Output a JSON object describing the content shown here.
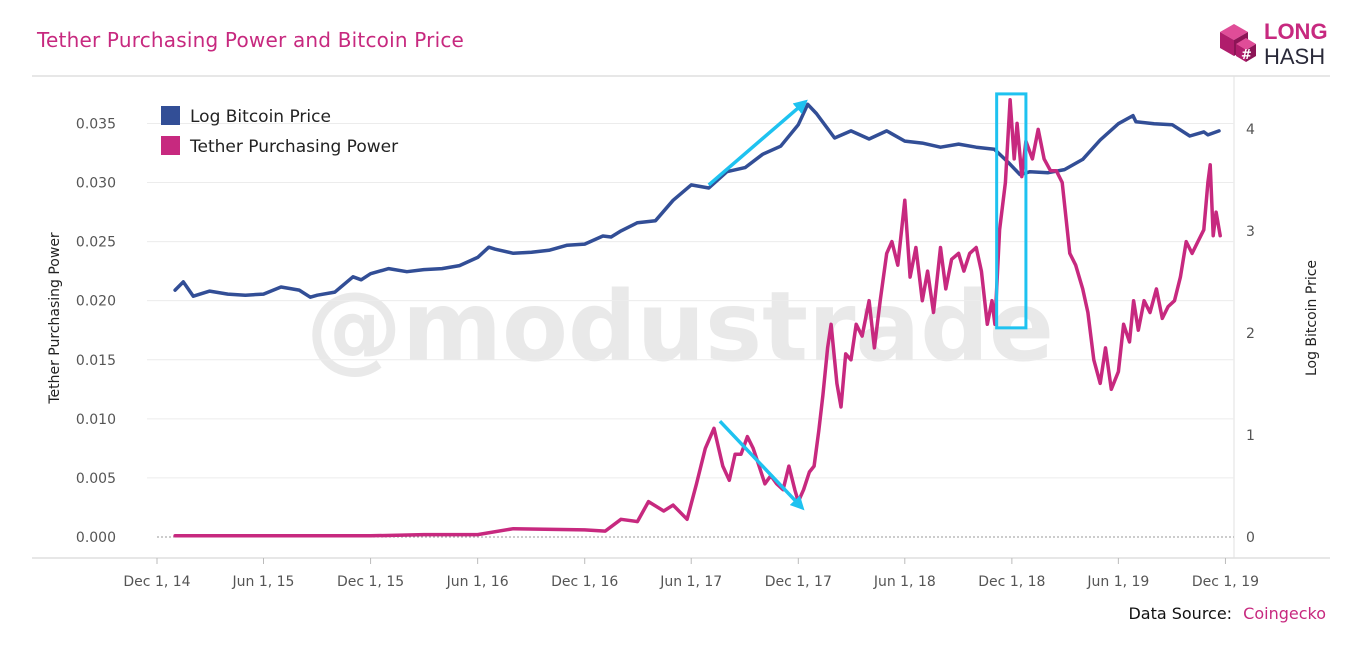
{
  "title": "Tether Purchasing Power and Bitcoin Price",
  "logo": {
    "line1": "LONG",
    "line2": "HASH"
  },
  "watermark": "@modustrade",
  "footer": {
    "label": "Data Source:",
    "source": "Coingecko"
  },
  "colors": {
    "bitcoin": "#324e96",
    "tether": "#c7297f",
    "annotation": "#1ec2f0",
    "title": "#c7297f"
  },
  "chart_data": {
    "type": "line",
    "title": "Tether Purchasing Power and Bitcoin Price",
    "x_ticks": [
      "Dec 1, 14",
      "Jun 1, 15",
      "Dec 1, 15",
      "Jun 1, 16",
      "Dec 1, 16",
      "Jun 1, 17",
      "Dec 1, 17",
      "Jun 1, 18",
      "Dec 1, 18",
      "Jun 1, 19",
      "Dec 1, 19"
    ],
    "x_tick_dates": [
      "2014-12-01",
      "2015-06-01",
      "2015-12-01",
      "2016-06-01",
      "2016-12-01",
      "2017-06-01",
      "2017-12-01",
      "2018-06-01",
      "2018-12-01",
      "2019-06-01",
      "2019-12-01"
    ],
    "x_range": [
      "2014-12-01",
      "2019-12-31"
    ],
    "y_left": {
      "label": "Tether Purchasing Power",
      "range": [
        0,
        0.038
      ],
      "ticks": [
        "0.000",
        "0.005",
        "0.010",
        "0.015",
        "0.020",
        "0.025",
        "0.030",
        "0.035"
      ]
    },
    "y_right": {
      "label": "Log Bitcoin Price",
      "range": [
        0,
        4.4
      ],
      "ticks": [
        "0",
        "1",
        "2",
        "3",
        "4"
      ]
    },
    "legend": {
      "position": "top-left",
      "entries": [
        "Log Bitcoin Price",
        "Tether Purchasing Power"
      ]
    },
    "grid": true,
    "series": [
      {
        "name": "Log Bitcoin Price",
        "axis": "right",
        "x": [
          "2015-01-01",
          "2015-01-15",
          "2015-02-01",
          "2015-03-01",
          "2015-04-01",
          "2015-05-01",
          "2015-06-01",
          "2015-07-01",
          "2015-08-01",
          "2015-08-20",
          "2015-09-01",
          "2015-10-01",
          "2015-11-01",
          "2015-11-15",
          "2015-12-01",
          "2016-01-01",
          "2016-02-01",
          "2016-03-01",
          "2016-04-01",
          "2016-05-01",
          "2016-06-01",
          "2016-06-20",
          "2016-07-01",
          "2016-08-01",
          "2016-09-01",
          "2016-10-01",
          "2016-11-01",
          "2016-12-01",
          "2017-01-01",
          "2017-01-15",
          "2017-02-01",
          "2017-03-01",
          "2017-04-01",
          "2017-05-01",
          "2017-06-01",
          "2017-07-01",
          "2017-08-01",
          "2017-09-01",
          "2017-10-01",
          "2017-11-01",
          "2017-12-01",
          "2017-12-17",
          "2018-01-01",
          "2018-02-01",
          "2018-03-01",
          "2018-04-01",
          "2018-05-01",
          "2018-06-01",
          "2018-07-01",
          "2018-08-01",
          "2018-09-01",
          "2018-10-01",
          "2018-11-01",
          "2018-11-25",
          "2018-12-15",
          "2019-01-01",
          "2019-02-01",
          "2019-03-01",
          "2019-04-01",
          "2019-05-01",
          "2019-06-01",
          "2019-06-26",
          "2019-07-01",
          "2019-08-01",
          "2019-09-01",
          "2019-10-01",
          "2019-10-25",
          "2019-11-01",
          "2019-11-20"
        ],
        "values": [
          2.42,
          2.5,
          2.36,
          2.41,
          2.38,
          2.37,
          2.38,
          2.45,
          2.42,
          2.35,
          2.37,
          2.4,
          2.55,
          2.52,
          2.58,
          2.63,
          2.6,
          2.62,
          2.63,
          2.66,
          2.74,
          2.84,
          2.82,
          2.78,
          2.79,
          2.81,
          2.86,
          2.87,
          2.95,
          2.94,
          3.0,
          3.08,
          3.1,
          3.3,
          3.45,
          3.42,
          3.58,
          3.62,
          3.75,
          3.83,
          4.04,
          4.24,
          4.15,
          3.91,
          3.98,
          3.9,
          3.98,
          3.88,
          3.86,
          3.82,
          3.85,
          3.82,
          3.8,
          3.67,
          3.55,
          3.58,
          3.57,
          3.6,
          3.7,
          3.89,
          4.05,
          4.13,
          4.07,
          4.05,
          4.04,
          3.93,
          3.97,
          3.94,
          3.98
        ]
      },
      {
        "name": "Tether Purchasing Power",
        "axis": "left",
        "x": [
          "2015-01-01",
          "2015-06-01",
          "2015-12-01",
          "2016-03-01",
          "2016-06-01",
          "2016-08-01",
          "2016-12-01",
          "2017-01-05",
          "2017-02-01",
          "2017-03-01",
          "2017-03-20",
          "2017-04-15",
          "2017-05-01",
          "2017-05-25",
          "2017-06-10",
          "2017-06-25",
          "2017-07-10",
          "2017-07-25",
          "2017-08-05",
          "2017-08-15",
          "2017-08-25",
          "2017-09-05",
          "2017-09-15",
          "2017-09-25",
          "2017-10-05",
          "2017-10-15",
          "2017-10-25",
          "2017-11-05",
          "2017-11-15",
          "2017-11-25",
          "2017-12-01",
          "2017-12-10",
          "2017-12-20",
          "2017-12-28",
          "2018-01-05",
          "2018-01-12",
          "2018-01-20",
          "2018-01-26",
          "2018-02-05",
          "2018-02-12",
          "2018-02-20",
          "2018-03-01",
          "2018-03-10",
          "2018-03-20",
          "2018-04-01",
          "2018-04-10",
          "2018-04-20",
          "2018-05-01",
          "2018-05-10",
          "2018-05-20",
          "2018-06-01",
          "2018-06-10",
          "2018-06-20",
          "2018-07-01",
          "2018-07-10",
          "2018-07-20",
          "2018-08-01",
          "2018-08-10",
          "2018-08-20",
          "2018-09-01",
          "2018-09-10",
          "2018-09-20",
          "2018-10-01",
          "2018-10-10",
          "2018-10-20",
          "2018-10-28",
          "2018-11-02",
          "2018-11-10",
          "2018-11-20",
          "2018-11-28",
          "2018-12-05",
          "2018-12-10",
          "2018-12-18",
          "2018-12-25",
          "2019-01-05",
          "2019-01-15",
          "2019-01-25",
          "2019-02-05",
          "2019-02-15",
          "2019-02-25",
          "2019-03-10",
          "2019-03-20",
          "2019-04-01",
          "2019-04-10",
          "2019-04-20",
          "2019-05-01",
          "2019-05-10",
          "2019-05-20",
          "2019-06-01",
          "2019-06-10",
          "2019-06-20",
          "2019-06-27",
          "2019-07-05",
          "2019-07-15",
          "2019-07-25",
          "2019-08-05",
          "2019-08-15",
          "2019-08-25",
          "2019-09-05",
          "2019-09-15",
          "2019-09-25",
          "2019-10-05",
          "2019-10-15",
          "2019-10-25",
          "2019-11-01",
          "2019-11-05",
          "2019-11-10",
          "2019-11-15",
          "2019-11-22"
        ],
        "values": [
          0.0001,
          0.0001,
          0.0001,
          0.0002,
          0.0002,
          0.0007,
          0.0006,
          0.0005,
          0.0015,
          0.0013,
          0.003,
          0.0022,
          0.0027,
          0.0015,
          0.0045,
          0.0075,
          0.0092,
          0.006,
          0.0048,
          0.007,
          0.007,
          0.0085,
          0.0075,
          0.006,
          0.0045,
          0.0052,
          0.0045,
          0.004,
          0.006,
          0.004,
          0.003,
          0.004,
          0.0055,
          0.006,
          0.009,
          0.012,
          0.016,
          0.018,
          0.013,
          0.011,
          0.0155,
          0.015,
          0.018,
          0.017,
          0.02,
          0.016,
          0.02,
          0.024,
          0.025,
          0.023,
          0.0285,
          0.022,
          0.0245,
          0.02,
          0.0225,
          0.019,
          0.0245,
          0.021,
          0.0235,
          0.024,
          0.0225,
          0.024,
          0.0245,
          0.0225,
          0.018,
          0.02,
          0.018,
          0.026,
          0.03,
          0.037,
          0.032,
          0.035,
          0.0305,
          0.0335,
          0.032,
          0.0345,
          0.032,
          0.031,
          0.031,
          0.03,
          0.024,
          0.023,
          0.021,
          0.019,
          0.015,
          0.013,
          0.016,
          0.0125,
          0.014,
          0.018,
          0.0165,
          0.02,
          0.0175,
          0.02,
          0.019,
          0.021,
          0.0185,
          0.0195,
          0.02,
          0.022,
          0.025,
          0.024,
          0.025,
          0.026,
          0.03,
          0.0315,
          0.0255,
          0.0275,
          0.0255
        ]
      }
    ],
    "annotations": [
      {
        "type": "arrow",
        "from": [
          "2017-07-01",
          3.45
        ],
        "to": [
          "2017-12-10",
          4.25
        ],
        "axis": "right"
      },
      {
        "type": "arrow",
        "from": [
          "2017-07-20",
          0.0098
        ],
        "to": [
          "2017-12-05",
          0.0026
        ],
        "axis": "left"
      },
      {
        "type": "box",
        "x": [
          "2018-11-05",
          "2018-12-25"
        ],
        "y": [
          0.0177,
          0.0375
        ],
        "axis": "left"
      }
    ]
  }
}
